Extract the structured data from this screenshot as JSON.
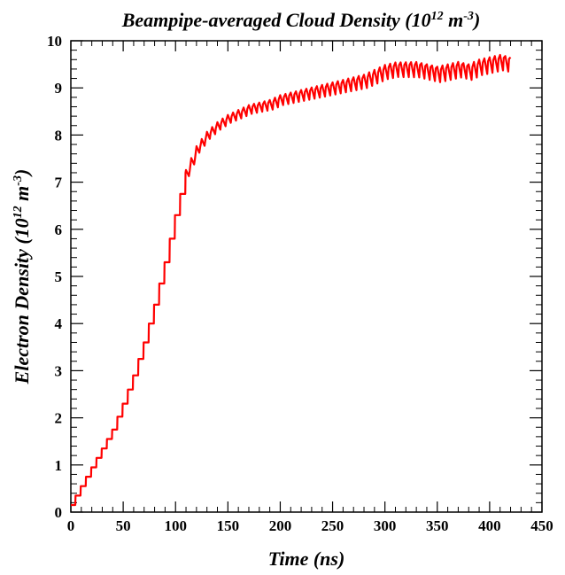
{
  "chart_data": {
    "type": "line",
    "title": "Beampipe-averaged Cloud Density (10",
    "title_exp": "12",
    "title_unit": " m",
    "title_unit_exp": "-3",
    "title_close": ")",
    "xlabel": "Time (ns)",
    "ylabel": "Electron Density (10",
    "ylabel_exp": "12",
    "ylabel_unit": " m",
    "ylabel_unit_exp": "-3",
    "ylabel_close": ")",
    "xlim": [
      0,
      450
    ],
    "ylim": [
      0,
      10
    ],
    "x_ticks": [
      0,
      50,
      100,
      150,
      200,
      250,
      300,
      350,
      400,
      450
    ],
    "y_ticks": [
      0,
      1,
      2,
      3,
      4,
      5,
      6,
      7,
      8,
      9,
      10
    ],
    "grid": false,
    "series_color": "#ff0000",
    "x": [
      0,
      10,
      20,
      30,
      40,
      50,
      60,
      70,
      80,
      90,
      100,
      110,
      120,
      130,
      140,
      150,
      160,
      170,
      180,
      190,
      200,
      210,
      220,
      230,
      240,
      250,
      260,
      270,
      280,
      290,
      300,
      310,
      320,
      330,
      340,
      350,
      360,
      370,
      380,
      390,
      400,
      410,
      420
    ],
    "y": [
      0.15,
      0.55,
      0.95,
      1.35,
      1.75,
      2.3,
      2.9,
      3.6,
      4.4,
      5.3,
      6.3,
      7.2,
      7.7,
      8.0,
      8.2,
      8.35,
      8.45,
      8.55,
      8.6,
      8.65,
      8.75,
      8.8,
      8.85,
      8.9,
      8.95,
      9.0,
      9.05,
      9.1,
      9.15,
      9.25,
      9.35,
      9.4,
      9.4,
      9.4,
      9.35,
      9.3,
      9.35,
      9.4,
      9.35,
      9.45,
      9.5,
      9.55,
      9.5
    ],
    "ripple_period": 5
  }
}
